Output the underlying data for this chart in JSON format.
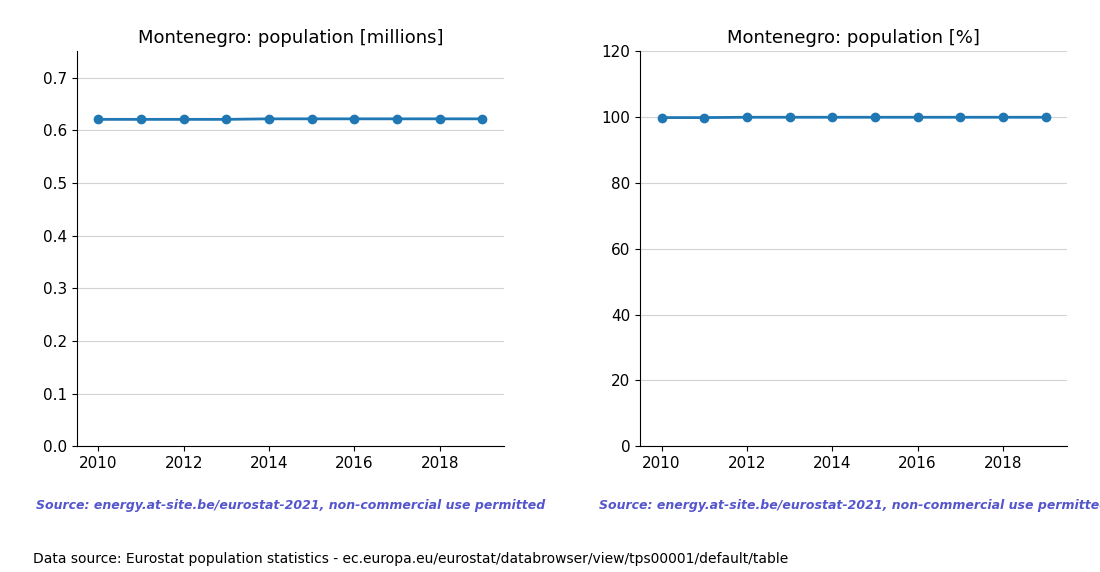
{
  "years": [
    2010,
    2011,
    2012,
    2013,
    2014,
    2015,
    2016,
    2017,
    2018,
    2019
  ],
  "pop_millions": [
    0.621,
    0.621,
    0.621,
    0.621,
    0.622,
    0.622,
    0.622,
    0.622,
    0.622,
    0.622
  ],
  "pop_percent": [
    99.9,
    99.9,
    100.0,
    100.0,
    100.0,
    100.0,
    100.0,
    100.0,
    100.0,
    100.0
  ],
  "title_left": "Montenegro: population [millions]",
  "title_right": "Montenegro: population [%]",
  "ylim_left": [
    0.0,
    0.75
  ],
  "ylim_right": [
    0,
    120
  ],
  "yticks_left": [
    0.0,
    0.1,
    0.2,
    0.3,
    0.4,
    0.5,
    0.6,
    0.7
  ],
  "yticks_right": [
    0,
    20,
    40,
    60,
    80,
    100,
    120
  ],
  "xticks_labeled": [
    2010,
    2012,
    2014,
    2016,
    2018
  ],
  "line_color": "#1f77b4",
  "marker": "o",
  "marker_size": 6,
  "source_text": "Source: energy.at-site.be/eurostat-2021, non-commercial use permitted",
  "source_color": "#5555cc",
  "footer_text": "Data source: Eurostat population statistics - ec.europa.eu/eurostat/databrowser/view/tps00001/default/table",
  "footer_color": "#000000",
  "title_fontsize": 13,
  "tick_fontsize": 11,
  "source_fontsize": 9,
  "footer_fontsize": 10
}
